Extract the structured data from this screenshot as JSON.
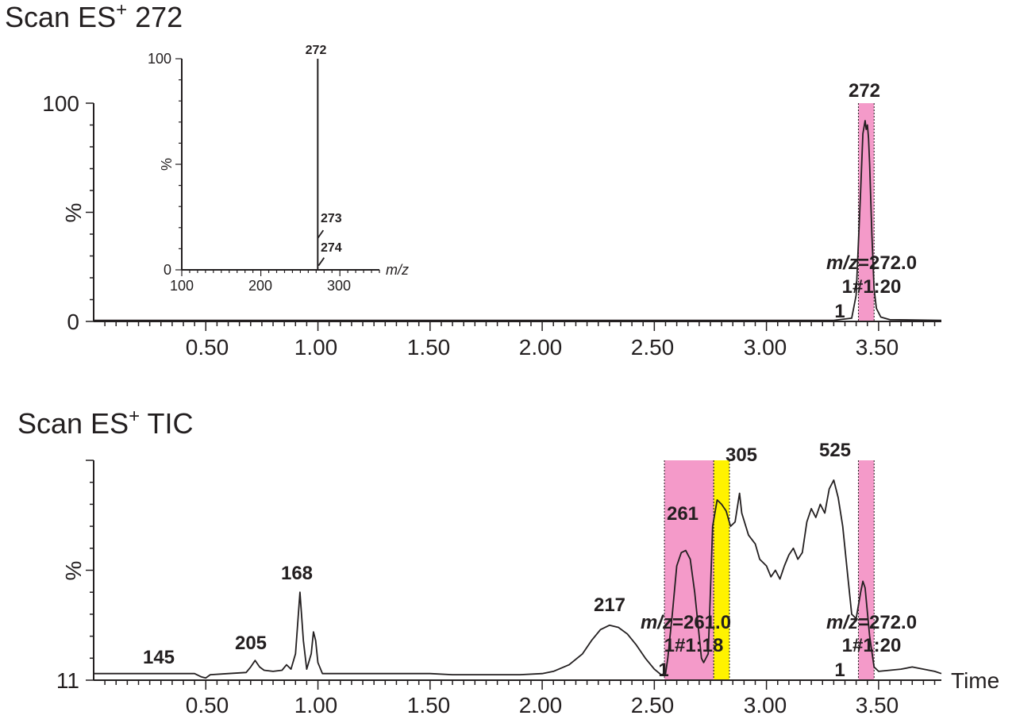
{
  "chart_data": [
    {
      "type": "line",
      "title": {
        "prefix": "Scan ES",
        "sup": "+",
        "suffix": " 272"
      },
      "ylabel": "%",
      "xlabel": "",
      "y_ticks": [
        "0",
        "100"
      ],
      "ylim": [
        0,
        100
      ],
      "xlim": [
        0.0,
        3.78
      ],
      "x_ticks": [
        0.5,
        1.0,
        1.5,
        2.0,
        2.5,
        3.0,
        3.5
      ],
      "x_tick_labels": [
        "0.50",
        "1.00",
        "1.50",
        "2.00",
        "2.50",
        "3.00",
        "3.50"
      ],
      "series": [
        {
          "name": "m/z 272",
          "points": [
            [
              0.0,
              0.5
            ],
            [
              3.3,
              0.5
            ],
            [
              3.38,
              1.5
            ],
            [
              3.4,
              12
            ],
            [
              3.42,
              60
            ],
            [
              3.43,
              86
            ],
            [
              3.44,
              92
            ],
            [
              3.445,
              88
            ],
            [
              3.45,
              90
            ],
            [
              3.455,
              84
            ],
            [
              3.46,
              72
            ],
            [
              3.47,
              40
            ],
            [
              3.48,
              15
            ],
            [
              3.49,
              6
            ],
            [
              3.51,
              2
            ],
            [
              3.55,
              0.8
            ],
            [
              3.78,
              0.5
            ]
          ]
        }
      ],
      "highlights": [
        {
          "range": [
            3.41,
            3.48
          ],
          "color": "#f49ac9"
        }
      ],
      "peak_labels": [
        {
          "text": "272",
          "x": 3.445,
          "y": 100
        }
      ],
      "annotation": {
        "line1": "m/z=272.0",
        "line2": "1#1:20",
        "line3": "1",
        "x": 3.45
      },
      "inset": {
        "type": "bar",
        "xlabel": "m/z",
        "ylabel": "%",
        "x_ticks": [
          100,
          200,
          300
        ],
        "y_ticks": [
          0,
          100
        ],
        "xlim": [
          100,
          350
        ],
        "ylim": [
          0,
          100
        ],
        "sticks": [
          {
            "mz": 272,
            "value": 100,
            "label": "272"
          },
          {
            "mz": 273,
            "value": 18,
            "label": "273"
          },
          {
            "mz": 274,
            "value": 5,
            "label": "274"
          }
        ]
      }
    },
    {
      "type": "line",
      "title": {
        "prefix": "Scan ES",
        "sup": "+",
        "suffix": " TIC"
      },
      "ylabel": "%",
      "xlabel": "Time",
      "y_ticks": [
        "11"
      ],
      "ylim": [
        0,
        100
      ],
      "xlim": [
        0.0,
        3.78
      ],
      "x_ticks": [
        0.5,
        1.0,
        1.5,
        2.0,
        2.5,
        3.0,
        3.5
      ],
      "x_tick_labels": [
        "0.50",
        "1.00",
        "1.50",
        "2.00",
        "2.50",
        "3.00",
        "3.50"
      ],
      "series": [
        {
          "name": "TIC",
          "points": [
            [
              0.0,
              3
            ],
            [
              0.25,
              3
            ],
            [
              0.45,
              3
            ],
            [
              0.48,
              1.5
            ],
            [
              0.5,
              1
            ],
            [
              0.52,
              2.5
            ],
            [
              0.6,
              3
            ],
            [
              0.68,
              3.5
            ],
            [
              0.7,
              6
            ],
            [
              0.72,
              9
            ],
            [
              0.74,
              6
            ],
            [
              0.76,
              4.5
            ],
            [
              0.8,
              4
            ],
            [
              0.84,
              4.5
            ],
            [
              0.86,
              7
            ],
            [
              0.88,
              5
            ],
            [
              0.9,
              12
            ],
            [
              0.92,
              40
            ],
            [
              0.935,
              18
            ],
            [
              0.95,
              5
            ],
            [
              0.97,
              12
            ],
            [
              0.98,
              22
            ],
            [
              0.99,
              18
            ],
            [
              1.0,
              8
            ],
            [
              1.02,
              3
            ],
            [
              1.2,
              3
            ],
            [
              1.5,
              3
            ],
            [
              1.6,
              2.5
            ],
            [
              1.9,
              2.5
            ],
            [
              2.0,
              3
            ],
            [
              2.05,
              4
            ],
            [
              2.12,
              7
            ],
            [
              2.18,
              12
            ],
            [
              2.22,
              18
            ],
            [
              2.26,
              23
            ],
            [
              2.3,
              25
            ],
            [
              2.34,
              24
            ],
            [
              2.38,
              21
            ],
            [
              2.42,
              16
            ],
            [
              2.46,
              10
            ],
            [
              2.5,
              5
            ],
            [
              2.53,
              2.5
            ],
            [
              2.55,
              3
            ],
            [
              2.56,
              10
            ],
            [
              2.58,
              30
            ],
            [
              2.6,
              52
            ],
            [
              2.62,
              58
            ],
            [
              2.64,
              59
            ],
            [
              2.66,
              55
            ],
            [
              2.68,
              40
            ],
            [
              2.7,
              20
            ],
            [
              2.71,
              10
            ],
            [
              2.72,
              8
            ],
            [
              2.74,
              12
            ],
            [
              2.75,
              40
            ],
            [
              2.76,
              70
            ],
            [
              2.78,
              82
            ],
            [
              2.8,
              80
            ],
            [
              2.82,
              77
            ],
            [
              2.84,
              70
            ],
            [
              2.86,
              72
            ],
            [
              2.88,
              85
            ],
            [
              2.89,
              76
            ],
            [
              2.92,
              66
            ],
            [
              2.95,
              62
            ],
            [
              2.97,
              55
            ],
            [
              3.0,
              52
            ],
            [
              3.02,
              47
            ],
            [
              3.04,
              50
            ],
            [
              3.06,
              46
            ],
            [
              3.08,
              52
            ],
            [
              3.1,
              57
            ],
            [
              3.12,
              60
            ],
            [
              3.14,
              55
            ],
            [
              3.16,
              58
            ],
            [
              3.18,
              72
            ],
            [
              3.2,
              78
            ],
            [
              3.22,
              74
            ],
            [
              3.24,
              80
            ],
            [
              3.26,
              76
            ],
            [
              3.28,
              87
            ],
            [
              3.3,
              91
            ],
            [
              3.32,
              83
            ],
            [
              3.34,
              70
            ],
            [
              3.36,
              50
            ],
            [
              3.38,
              30
            ],
            [
              3.4,
              28
            ],
            [
              3.42,
              40
            ],
            [
              3.43,
              45
            ],
            [
              3.44,
              42
            ],
            [
              3.46,
              20
            ],
            [
              3.48,
              6
            ],
            [
              3.5,
              4
            ],
            [
              3.6,
              5
            ],
            [
              3.65,
              6
            ],
            [
              3.7,
              5
            ],
            [
              3.75,
              4
            ],
            [
              3.78,
              3
            ]
          ]
        }
      ],
      "highlights": [
        {
          "range": [
            2.545,
            2.765
          ],
          "color": "#f49ac9"
        },
        {
          "range": [
            2.765,
            2.835
          ],
          "color": "#fff200"
        },
        {
          "range": [
            3.41,
            3.48
          ],
          "color": "#f49ac9"
        }
      ],
      "peak_labels": [
        {
          "text": "145",
          "x": 0.3,
          "y": 3
        },
        {
          "text": "205",
          "x": 0.72,
          "y": 9
        },
        {
          "text": "168",
          "x": 0.92,
          "y": 40
        },
        {
          "text": "217",
          "x": 2.3,
          "y": 25
        },
        {
          "text": "261",
          "x": 2.64,
          "y": 59
        },
        {
          "text": "305",
          "x": 2.86,
          "y": 85
        },
        {
          "text": "525",
          "x": 3.3,
          "y": 91
        }
      ],
      "annotations": [
        {
          "line1": "m/z=261.0",
          "line2": "1#1:18",
          "line3": "1",
          "x": 2.66
        },
        {
          "line1": "m/z=272.0",
          "line2": "1#1:20",
          "line3": "1",
          "x": 3.45
        }
      ]
    }
  ]
}
